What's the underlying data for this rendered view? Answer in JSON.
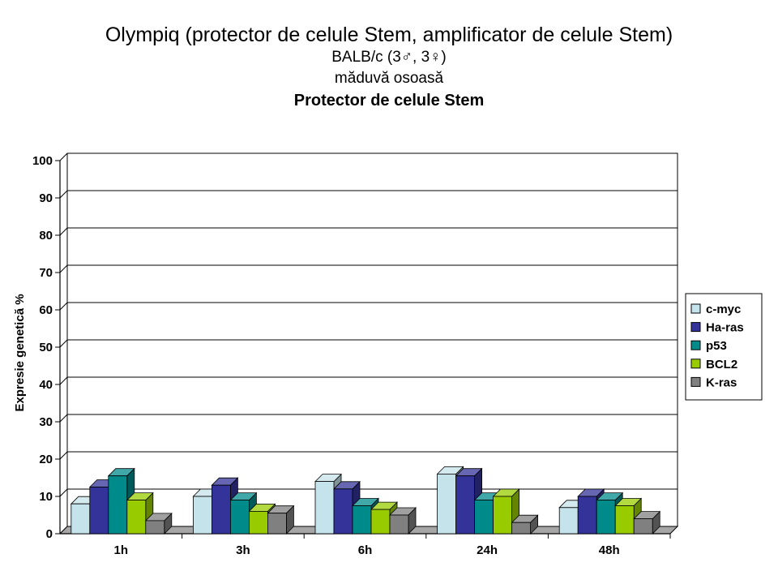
{
  "chart_data": {
    "type": "bar",
    "title": "Olympiq (protector de celule Stem, amplificator de celule Stem)",
    "subtitle_lines": [
      "BALB/c (3♂, 3♀)",
      "măduvă osoasă",
      "Protector de celule Stem"
    ],
    "ylabel": "Expresie genetică %",
    "xlabel": "",
    "ylim": [
      0,
      100
    ],
    "yticks": [
      0,
      10,
      20,
      30,
      40,
      50,
      60,
      70,
      80,
      90,
      100
    ],
    "grid": true,
    "legend_position": "right",
    "categories": [
      "1h",
      "3h",
      "6h",
      "24h",
      "48h"
    ],
    "series": [
      {
        "name": "c-myc",
        "color": "#c5e3ea",
        "values": [
          8,
          10,
          14,
          16,
          7
        ]
      },
      {
        "name": "Ha-ras",
        "color": "#333399",
        "values": [
          12.5,
          13,
          12,
          15.5,
          10
        ]
      },
      {
        "name": "p53",
        "color": "#008b8b",
        "values": [
          15.5,
          9,
          7.5,
          9,
          9
        ]
      },
      {
        "name": "BCL2",
        "color": "#99cc00",
        "values": [
          9,
          6,
          6.5,
          10,
          7.5
        ]
      },
      {
        "name": "K-ras",
        "color": "#808080",
        "values": [
          3.5,
          5.5,
          5,
          3,
          4
        ]
      }
    ]
  }
}
